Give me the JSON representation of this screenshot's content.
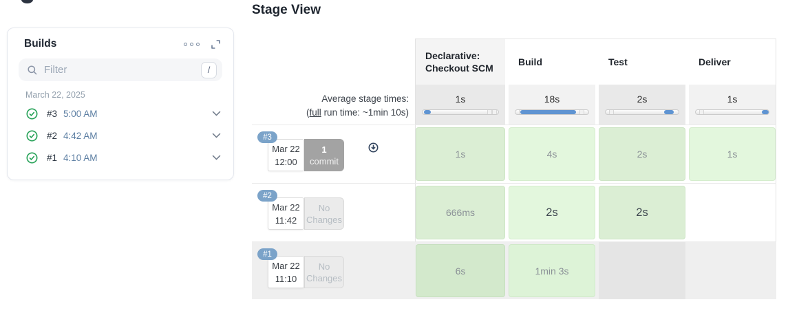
{
  "theme": {
    "accent_blue": "#5f94d2",
    "badge_blue": "#7ba3c9",
    "success_green_dark_col": "#dbeed4",
    "success_green_light_col": "#e3f7dd",
    "success_check_green": "#23a055",
    "empty_gray": "#e5e5e5",
    "row_dim_gray": "#efefef"
  },
  "sidebar": {
    "title": "Builds",
    "icons": [
      "ellipsis-icon",
      "expand-icon"
    ],
    "filter": {
      "placeholder": "Filter",
      "shortcut": "/"
    },
    "date_group": "March 22, 2025",
    "builds": [
      {
        "id": "#3",
        "time": "5:00 AM",
        "status": "success"
      },
      {
        "id": "#2",
        "time": "4:42 AM",
        "status": "success"
      },
      {
        "id": "#1",
        "time": "4:10 AM",
        "status": "success"
      }
    ]
  },
  "stage_view": {
    "title": "Stage View",
    "average_label_line1": "Average stage times:",
    "average_label_open": "(",
    "average_label_link": "full",
    "average_label_rest": " run time: ~1min 10s)",
    "columns": [
      "Declarative: Checkout SCM",
      "Build",
      "Test",
      "Deliver"
    ],
    "average_row": {
      "durations": [
        "1s",
        "18s",
        "2s",
        "1s"
      ],
      "bars": [
        {
          "left_pct": 1.5,
          "width_pct": 9,
          "marks": [
            85,
            92
          ]
        },
        {
          "left_pct": 7,
          "width_pct": 76,
          "marks": [
            5,
            88
          ]
        },
        {
          "left_pct": 80,
          "width_pct": 13,
          "marks": [
            5
          ]
        },
        {
          "left_pct": 91,
          "width_pct": 9,
          "marks": [
            5
          ]
        }
      ]
    },
    "rows": [
      {
        "build": "#3",
        "date": "Mar 22",
        "time": "12:00",
        "changes_line1": "1",
        "changes_line2": "commit",
        "has_commit": true,
        "cells": [
          {
            "label": "1s"
          },
          {
            "label": "4s"
          },
          {
            "label": "2s"
          },
          {
            "label": "1s"
          }
        ]
      },
      {
        "build": "#2",
        "date": "Mar 22",
        "time": "11:42",
        "changes_line1": "No",
        "changes_line2": "Changes",
        "has_commit": false,
        "cells": [
          {
            "label": "666ms"
          },
          {
            "label": "2s",
            "emphasis": true
          },
          {
            "label": "2s",
            "emphasis": true
          },
          {
            "label": "",
            "empty": "white"
          }
        ]
      },
      {
        "build": "#1",
        "date": "Mar 22",
        "time": "11:10",
        "changes_line1": "No",
        "changes_line2": "Changes",
        "has_commit": false,
        "cells": [
          {
            "label": "6s"
          },
          {
            "label": "1min 3s"
          },
          {
            "label": "",
            "empty": "dark"
          },
          {
            "label": "",
            "empty": "light"
          }
        ]
      }
    ]
  }
}
